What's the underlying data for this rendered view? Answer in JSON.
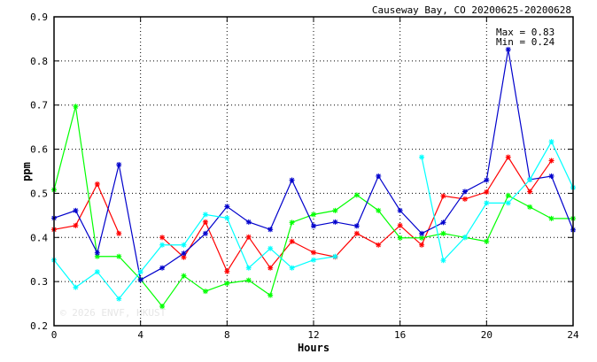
{
  "chart_data": {
    "type": "line",
    "title": "Causeway Bay, CO 20200625-20200628",
    "xlabel": "Hours",
    "ylabel": "ppm",
    "xlim": [
      0,
      24
    ],
    "ylim": [
      0.2,
      0.9
    ],
    "xticks": [
      "0",
      "4",
      "8",
      "12",
      "16",
      "20",
      "24"
    ],
    "yticks": [
      "0.2",
      "0.3",
      "0.4",
      "0.5",
      "0.6",
      "0.7",
      "0.8",
      "0.9"
    ],
    "x_tick_values": [
      0,
      4,
      8,
      12,
      16,
      20,
      24
    ],
    "y_tick_values": [
      0.2,
      0.3,
      0.4,
      0.5,
      0.6,
      0.7,
      0.8,
      0.9
    ],
    "grid": true,
    "annotations": {
      "max": "Max = 0.83",
      "min": "Min = 0.24"
    },
    "watermark": "© 2026  ENVF, HKUST",
    "x": [
      0,
      1,
      2,
      3,
      4,
      5,
      6,
      7,
      8,
      9,
      10,
      11,
      12,
      13,
      14,
      15,
      16,
      17,
      18,
      19,
      20,
      21,
      22,
      23,
      24
    ],
    "series": [
      {
        "color": "#ff0000",
        "values": [
          0.418,
          0.427,
          0.521,
          0.409,
          null,
          0.4,
          0.355,
          0.435,
          0.323,
          0.401,
          0.331,
          0.391,
          0.366,
          0.356,
          0.409,
          0.383,
          0.427,
          0.383,
          0.494,
          0.487,
          0.503,
          0.582,
          0.504,
          0.574,
          null
        ]
      },
      {
        "color": "#00ff00",
        "values": [
          0.508,
          0.697,
          0.357,
          0.357,
          0.305,
          0.244,
          0.313,
          0.278,
          0.296,
          0.303,
          0.269,
          0.434,
          0.452,
          0.461,
          0.496,
          0.461,
          0.399,
          0.399,
          0.409,
          0.4,
          0.391,
          0.495,
          0.469,
          0.443,
          0.443
        ]
      },
      {
        "color": "#0000cc",
        "values": [
          0.444,
          0.461,
          0.365,
          0.565,
          0.304,
          0.331,
          0.364,
          0.409,
          0.47,
          0.435,
          0.418,
          0.53,
          0.426,
          0.435,
          0.426,
          0.539,
          0.461,
          0.409,
          0.434,
          0.504,
          0.53,
          0.826,
          0.531,
          0.539,
          0.417
        ]
      },
      {
        "color": "#00ffff",
        "values": [
          0.349,
          0.287,
          0.322,
          0.261,
          0.322,
          0.383,
          0.383,
          0.452,
          0.444,
          0.331,
          0.375,
          0.331,
          0.349,
          0.357,
          null,
          null,
          null,
          0.582,
          0.348,
          0.4,
          0.478,
          0.478,
          0.531,
          0.617,
          0.513
        ]
      }
    ]
  }
}
